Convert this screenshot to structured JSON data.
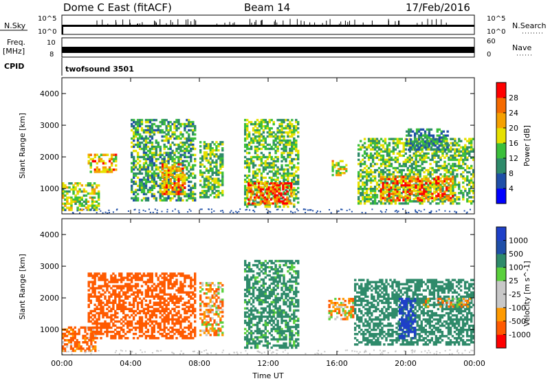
{
  "header": {
    "station": "Dome C East (fitACF)",
    "beam": "Beam 14",
    "date": "17/Feb/2016"
  },
  "strips": {
    "nsky_label": "N.Sky",
    "nsky_ticks": [
      "10^5",
      "10^0"
    ],
    "nsearch_label": "N.Search",
    "freq_label_1": "Freq.",
    "freq_label_2": "[MHz]",
    "freq_ticks": [
      "10",
      "8"
    ],
    "nave_ticks": [
      "60",
      "0"
    ],
    "nave_label": "Nave",
    "cpid_label": "CPID",
    "cpid_value": "twofsound 3501"
  },
  "axes": {
    "ylabel": "Slant Range [km]",
    "xlabel": "Time UT",
    "y_ticks": [
      "1000",
      "2000",
      "3000",
      "4000"
    ],
    "x_ticks": [
      "00:00",
      "04:00",
      "08:00",
      "12:00",
      "16:00",
      "20:00",
      "00:00"
    ]
  },
  "colors": {
    "power": [
      "#0000ff",
      "#1f4fa8",
      "#2e8a6a",
      "#3bbf3b",
      "#e6e000",
      "#f5a000",
      "#f56a00",
      "#ff0000"
    ],
    "velocity": [
      "#ff0000",
      "#ff5a00",
      "#ff9a00",
      "#c8c8c8",
      "#c8c8c8",
      "#5ad03c",
      "#2e8a6a",
      "#1f4fa8",
      "#1e40c8"
    ]
  },
  "chart_data": [
    {
      "type": "heatmap",
      "name": "power-panel",
      "ylabel": "Slant Range [km]",
      "colorbar_label": "Power [dB]",
      "colorbar_ticks": [
        "4",
        "8",
        "12",
        "16",
        "20",
        "24",
        "28"
      ],
      "xlim_hours": [
        0,
        24
      ],
      "ylim_km": [
        200,
        4500
      ],
      "regions": [
        {
          "t0": 0.0,
          "t1": 2.2,
          "r0": 300,
          "r1": 1200,
          "level": 18
        },
        {
          "t0": 1.5,
          "t1": 3.2,
          "r0": 1500,
          "r1": 2100,
          "level": 22
        },
        {
          "t0": 4.0,
          "t1": 7.8,
          "r0": 600,
          "r1": 3200,
          "level": 14
        },
        {
          "t0": 5.8,
          "t1": 7.2,
          "r0": 800,
          "r1": 1800,
          "level": 24
        },
        {
          "t0": 8.0,
          "t1": 9.4,
          "r0": 700,
          "r1": 2500,
          "level": 16
        },
        {
          "t0": 10.6,
          "t1": 13.8,
          "r0": 400,
          "r1": 3200,
          "level": 16
        },
        {
          "t0": 10.8,
          "t1": 13.4,
          "r0": 500,
          "r1": 1200,
          "level": 27
        },
        {
          "t0": 15.7,
          "t1": 16.6,
          "r0": 1400,
          "r1": 1900,
          "level": 20
        },
        {
          "t0": 17.2,
          "t1": 24.0,
          "r0": 500,
          "r1": 2600,
          "level": 16
        },
        {
          "t0": 18.5,
          "t1": 22.8,
          "r0": 600,
          "r1": 1400,
          "level": 25
        },
        {
          "t0": 20.0,
          "t1": 22.5,
          "r0": 2200,
          "r1": 2900,
          "level": 12
        }
      ]
    },
    {
      "type": "heatmap",
      "name": "velocity-panel",
      "ylabel": "Slant Range [km]",
      "colorbar_label": "Velocity [m s^-1]",
      "colorbar_ticks": [
        "1000",
        "500",
        "100",
        "25",
        "-25",
        "-100",
        "-500",
        "-1000"
      ],
      "xlim_hours": [
        0,
        24
      ],
      "ylim_km": [
        200,
        4500
      ],
      "regions": [
        {
          "t0": 0.0,
          "t1": 2.0,
          "r0": 300,
          "r1": 1100,
          "level": -150
        },
        {
          "t0": 1.5,
          "t1": 7.8,
          "r0": 700,
          "r1": 2800,
          "level": -300
        },
        {
          "t0": 8.0,
          "t1": 9.4,
          "r0": 800,
          "r1": 2500,
          "level": -80
        },
        {
          "t0": 10.6,
          "t1": 13.8,
          "r0": 400,
          "r1": 3200,
          "level": 200
        },
        {
          "t0": 15.5,
          "t1": 17.0,
          "r0": 1300,
          "r1": 2000,
          "level": -60
        },
        {
          "t0": 17.0,
          "t1": 24.0,
          "r0": 500,
          "r1": 2600,
          "level": 300
        },
        {
          "t0": 19.6,
          "t1": 20.6,
          "r0": 700,
          "r1": 2000,
          "level": 1000
        },
        {
          "t0": 21.0,
          "t1": 23.8,
          "r0": 1700,
          "r1": 2000,
          "level": 10
        }
      ]
    }
  ]
}
